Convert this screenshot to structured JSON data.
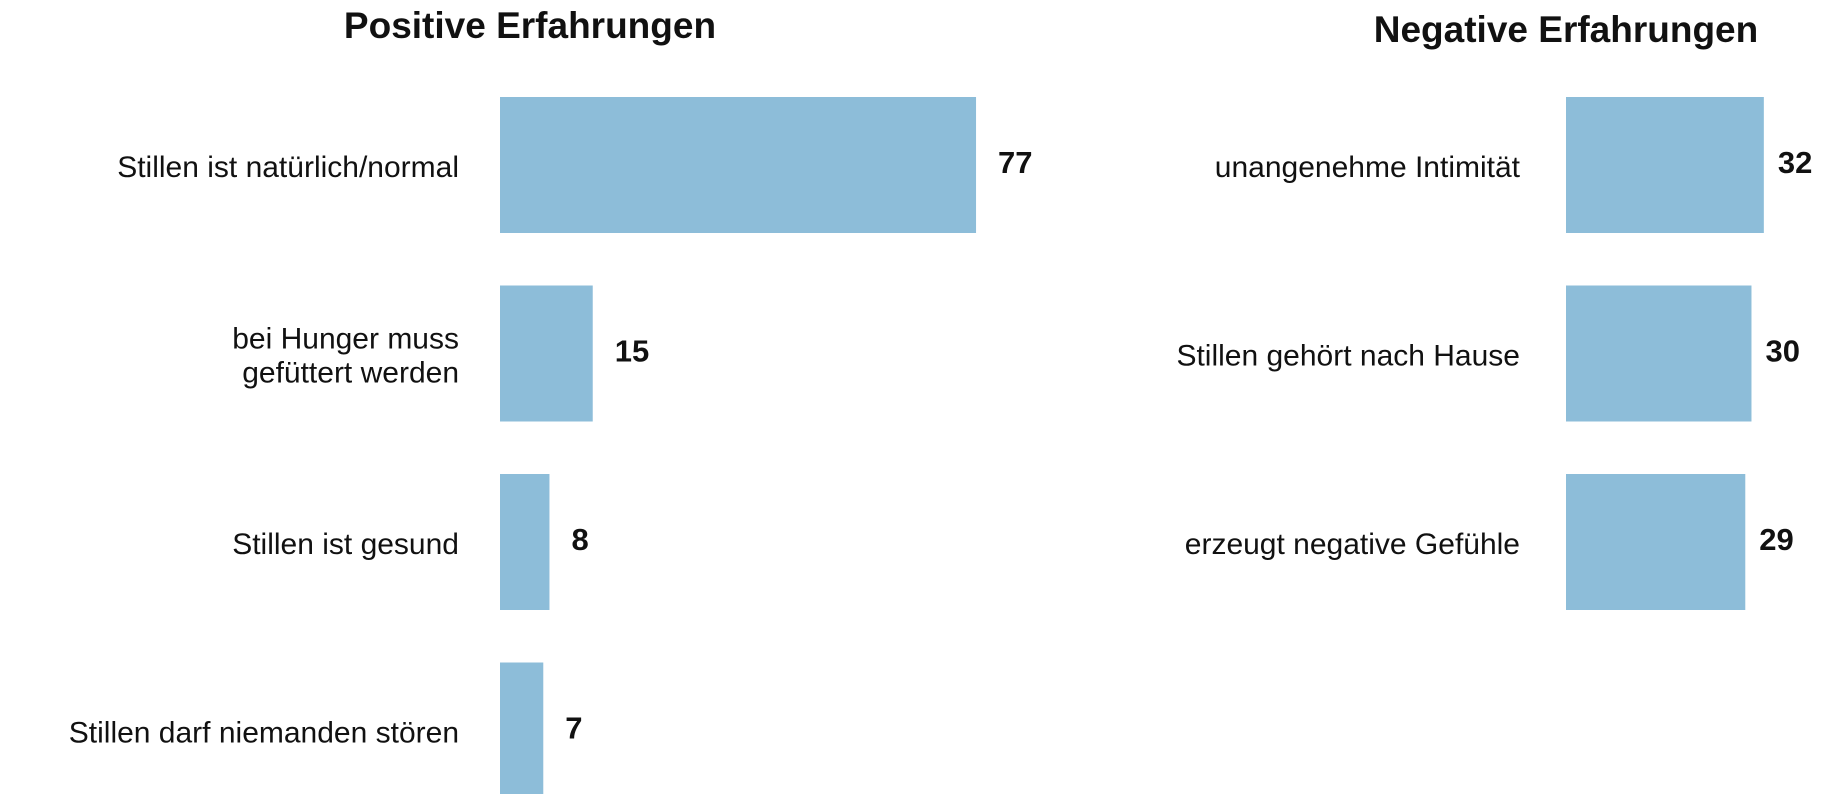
{
  "chart_data": [
    {
      "type": "bar",
      "orientation": "horizontal",
      "title": "Positive Erfahrungen",
      "categories": [
        "Stillen ist natürlich/normal",
        "bei Hunger muss\ngefüttert werden",
        "Stillen ist gesund",
        "Stillen darf niemanden stören"
      ],
      "values": [
        77,
        15,
        8,
        7
      ],
      "color": "#8dbdd9"
    },
    {
      "type": "bar",
      "orientation": "horizontal",
      "title": "Negative Erfahrungen",
      "categories": [
        "unangenehme Intimität",
        "Stillen gehört nach Hause",
        "erzeugt negative Gefühle"
      ],
      "values": [
        32,
        30,
        29
      ],
      "color": "#8dbdd9"
    }
  ]
}
